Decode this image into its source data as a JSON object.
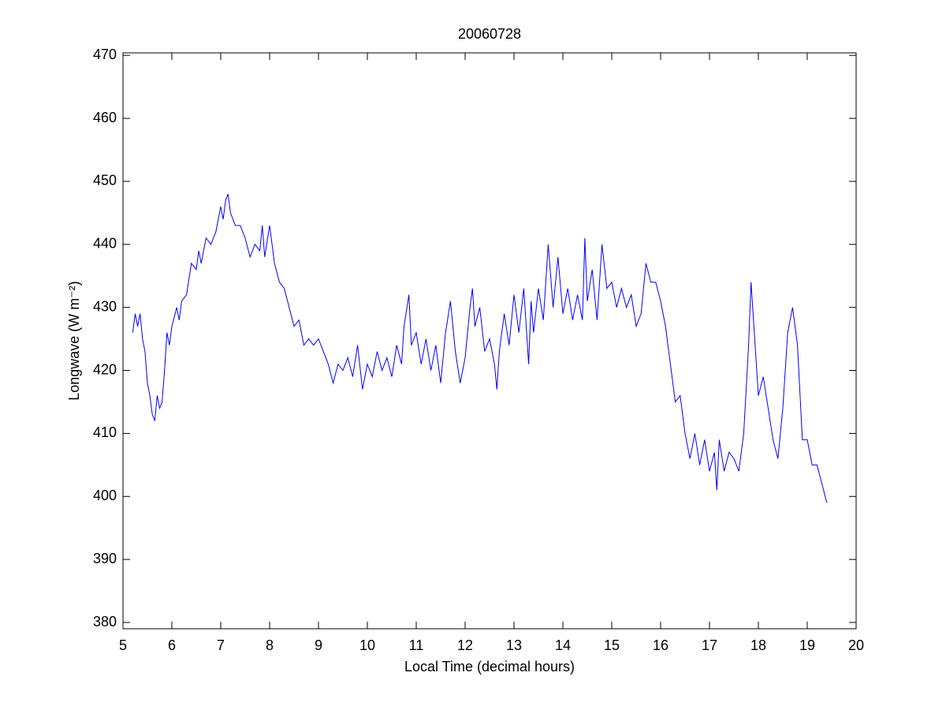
{
  "chart_data": {
    "type": "line",
    "title": "20060728",
    "xlabel": "Local Time (decimal hours)",
    "ylabel": "Longwave (W m⁻²)",
    "xlim": [
      5,
      20
    ],
    "ylim": [
      379,
      470.4
    ],
    "xticks": [
      5,
      6,
      7,
      8,
      9,
      10,
      11,
      12,
      13,
      14,
      15,
      16,
      17,
      18,
      19,
      20
    ],
    "yticks": [
      380,
      390,
      400,
      410,
      420,
      430,
      440,
      450,
      460,
      470
    ],
    "grid": false,
    "box": true,
    "x": [
      5.2,
      5.25,
      5.3,
      5.35,
      5.4,
      5.45,
      5.5,
      5.55,
      5.6,
      5.65,
      5.7,
      5.75,
      5.8,
      5.85,
      5.9,
      5.95,
      6.0,
      6.1,
      6.15,
      6.2,
      6.3,
      6.4,
      6.5,
      6.55,
      6.6,
      6.7,
      6.8,
      6.9,
      7.0,
      7.05,
      7.1,
      7.15,
      7.2,
      7.3,
      7.4,
      7.5,
      7.6,
      7.7,
      7.8,
      7.85,
      7.9,
      8.0,
      8.05,
      8.1,
      8.2,
      8.3,
      8.4,
      8.5,
      8.6,
      8.7,
      8.8,
      8.9,
      9.0,
      9.1,
      9.2,
      9.3,
      9.4,
      9.5,
      9.6,
      9.7,
      9.8,
      9.9,
      10.0,
      10.1,
      10.2,
      10.3,
      10.4,
      10.5,
      10.6,
      10.7,
      10.75,
      10.85,
      10.9,
      11.0,
      11.1,
      11.2,
      11.3,
      11.4,
      11.5,
      11.6,
      11.7,
      11.8,
      11.9,
      12.0,
      12.1,
      12.15,
      12.2,
      12.3,
      12.4,
      12.5,
      12.6,
      12.65,
      12.7,
      12.8,
      12.9,
      13.0,
      13.1,
      13.2,
      13.3,
      13.35,
      13.4,
      13.5,
      13.6,
      13.7,
      13.8,
      13.9,
      14.0,
      14.1,
      14.2,
      14.3,
      14.4,
      14.45,
      14.5,
      14.6,
      14.7,
      14.8,
      14.9,
      15.0,
      15.1,
      15.2,
      15.3,
      15.4,
      15.5,
      15.6,
      15.7,
      15.8,
      15.9,
      16.0,
      16.1,
      16.2,
      16.3,
      16.4,
      16.5,
      16.6,
      16.7,
      16.8,
      16.9,
      17.0,
      17.1,
      17.15,
      17.2,
      17.3,
      17.4,
      17.5,
      17.6,
      17.7,
      17.8,
      17.85,
      17.9,
      18.0,
      18.1,
      18.2,
      18.3,
      18.4,
      18.5,
      18.6,
      18.7,
      18.8,
      18.9,
      19.0,
      19.1,
      19.2,
      19.3,
      19.4
    ],
    "series": [
      {
        "color": "#0000ff",
        "values": [
          426,
          429,
          427,
          429,
          425,
          423,
          418,
          416,
          413,
          412,
          416,
          414,
          415,
          420,
          426,
          424,
          427,
          430,
          428,
          431,
          432,
          437,
          436,
          439,
          437,
          441,
          440,
          442,
          446,
          444,
          447,
          448,
          445,
          443,
          443,
          441,
          438,
          440,
          439,
          443,
          438,
          443,
          440,
          437,
          434,
          433,
          430,
          427,
          428,
          424,
          425,
          424,
          425,
          423,
          421,
          418,
          421,
          420,
          422,
          419,
          424,
          417,
          421,
          419,
          423,
          420,
          422,
          419,
          424,
          421,
          427,
          432,
          424,
          426,
          421,
          425,
          420,
          424,
          418,
          426,
          431,
          423,
          418,
          422,
          430,
          433,
          427,
          430,
          423,
          425,
          421,
          417,
          423,
          429,
          424,
          432,
          426,
          433,
          421,
          431,
          426,
          433,
          428,
          440,
          430,
          438,
          429,
          433,
          428,
          432,
          428,
          441,
          431,
          436,
          428,
          440,
          433,
          434,
          430,
          433,
          430,
          432,
          427,
          429,
          437,
          434,
          434,
          431,
          427,
          421,
          415,
          416,
          410,
          406,
          410,
          405,
          409,
          404,
          407,
          401,
          409,
          404,
          407,
          406,
          404,
          410,
          424,
          434,
          428,
          416,
          419,
          414,
          409,
          406,
          414,
          426,
          430,
          424,
          409,
          409,
          405,
          405,
          402,
          399
        ]
      }
    ]
  }
}
